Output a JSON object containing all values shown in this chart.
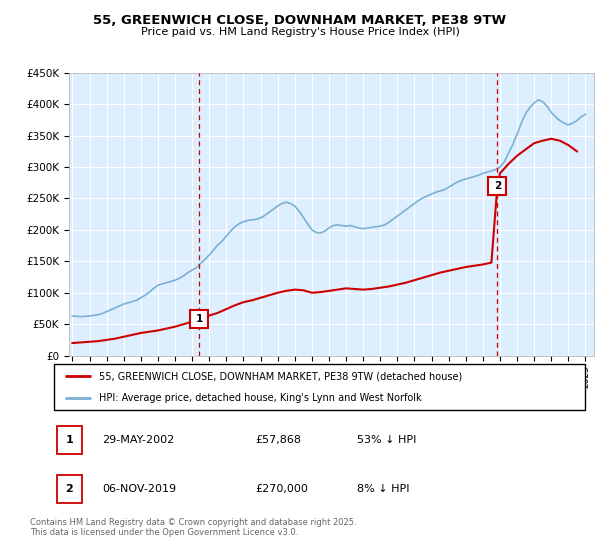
{
  "title": "55, GREENWICH CLOSE, DOWNHAM MARKET, PE38 9TW",
  "subtitle": "Price paid vs. HM Land Registry's House Price Index (HPI)",
  "ylabel_ticks": [
    "£0",
    "£50K",
    "£100K",
    "£150K",
    "£200K",
    "£250K",
    "£300K",
    "£350K",
    "£400K",
    "£450K"
  ],
  "ytick_values": [
    0,
    50000,
    100000,
    150000,
    200000,
    250000,
    300000,
    350000,
    400000,
    450000
  ],
  "ylim": [
    0,
    450000
  ],
  "xlim_start": 1994.8,
  "xlim_end": 2025.5,
  "red_line_color": "#cc0000",
  "blue_line_color": "#7ab0d4",
  "plot_bg_color": "#ddeeff",
  "grid_color": "#ffffff",
  "marker1_x": 2002.41,
  "marker1_y": 57868,
  "marker2_x": 2019.85,
  "marker2_y": 270000,
  "legend1": "55, GREENWICH CLOSE, DOWNHAM MARKET, PE38 9TW (detached house)",
  "legend2": "HPI: Average price, detached house, King's Lynn and West Norfolk",
  "ann1_label": "1",
  "ann1_date": "29-MAY-2002",
  "ann1_price": "£57,868",
  "ann1_hpi": "53% ↓ HPI",
  "ann2_label": "2",
  "ann2_date": "06-NOV-2019",
  "ann2_price": "£270,000",
  "ann2_hpi": "8% ↓ HPI",
  "footer": "Contains HM Land Registry data © Crown copyright and database right 2025.\nThis data is licensed under the Open Government Licence v3.0.",
  "hpi_data_x": [
    1995.0,
    1995.25,
    1995.5,
    1995.75,
    1996.0,
    1996.25,
    1996.5,
    1996.75,
    1997.0,
    1997.25,
    1997.5,
    1997.75,
    1998.0,
    1998.25,
    1998.5,
    1998.75,
    1999.0,
    1999.25,
    1999.5,
    1999.75,
    2000.0,
    2000.25,
    2000.5,
    2000.75,
    2001.0,
    2001.25,
    2001.5,
    2001.75,
    2002.0,
    2002.25,
    2002.5,
    2002.75,
    2003.0,
    2003.25,
    2003.5,
    2003.75,
    2004.0,
    2004.25,
    2004.5,
    2004.75,
    2005.0,
    2005.25,
    2005.5,
    2005.75,
    2006.0,
    2006.25,
    2006.5,
    2006.75,
    2007.0,
    2007.25,
    2007.5,
    2007.75,
    2008.0,
    2008.25,
    2008.5,
    2008.75,
    2009.0,
    2009.25,
    2009.5,
    2009.75,
    2010.0,
    2010.25,
    2010.5,
    2010.75,
    2011.0,
    2011.25,
    2011.5,
    2011.75,
    2012.0,
    2012.25,
    2012.5,
    2012.75,
    2013.0,
    2013.25,
    2013.5,
    2013.75,
    2014.0,
    2014.25,
    2014.5,
    2014.75,
    2015.0,
    2015.25,
    2015.5,
    2015.75,
    2016.0,
    2016.25,
    2016.5,
    2016.75,
    2017.0,
    2017.25,
    2017.5,
    2017.75,
    2018.0,
    2018.25,
    2018.5,
    2018.75,
    2019.0,
    2019.25,
    2019.5,
    2019.75,
    2020.0,
    2020.25,
    2020.5,
    2020.75,
    2021.0,
    2021.25,
    2021.5,
    2021.75,
    2022.0,
    2022.25,
    2022.5,
    2022.75,
    2023.0,
    2023.25,
    2023.5,
    2023.75,
    2024.0,
    2024.25,
    2024.5,
    2024.75,
    2025.0
  ],
  "hpi_data_y": [
    63000,
    62500,
    62000,
    62500,
    63000,
    64000,
    65000,
    67000,
    70000,
    73000,
    76000,
    79000,
    82000,
    84000,
    86000,
    88000,
    92000,
    96000,
    101000,
    107000,
    112000,
    114000,
    116000,
    118000,
    120000,
    123000,
    127000,
    132000,
    136000,
    140000,
    147000,
    153000,
    160000,
    168000,
    176000,
    182000,
    190000,
    198000,
    205000,
    210000,
    213000,
    215000,
    216000,
    217000,
    219000,
    223000,
    228000,
    233000,
    238000,
    242000,
    244000,
    242000,
    238000,
    230000,
    220000,
    210000,
    200000,
    196000,
    195000,
    198000,
    203000,
    207000,
    208000,
    207000,
    206000,
    207000,
    205000,
    203000,
    202000,
    203000,
    204000,
    205000,
    206000,
    208000,
    212000,
    217000,
    222000,
    227000,
    232000,
    237000,
    242000,
    247000,
    251000,
    254000,
    257000,
    260000,
    262000,
    264000,
    268000,
    272000,
    276000,
    279000,
    281000,
    283000,
    285000,
    287000,
    290000,
    292000,
    294000,
    296000,
    300000,
    308000,
    322000,
    336000,
    352000,
    370000,
    385000,
    395000,
    402000,
    407000,
    404000,
    397000,
    387000,
    380000,
    374000,
    370000,
    367000,
    370000,
    374000,
    380000,
    384000
  ],
  "price_data_x": [
    1995.0,
    1995.5,
    1996.0,
    1996.5,
    1997.0,
    1997.5,
    1998.0,
    1998.5,
    1999.0,
    1999.5,
    2000.0,
    2000.5,
    2001.0,
    2001.5,
    2002.0,
    2002.41,
    2002.8,
    2003.5,
    2004.0,
    2004.5,
    2005.0,
    2005.5,
    2006.0,
    2006.5,
    2007.0,
    2007.5,
    2008.0,
    2008.5,
    2009.0,
    2009.5,
    2010.0,
    2010.5,
    2011.0,
    2011.5,
    2012.0,
    2012.5,
    2013.0,
    2013.5,
    2014.0,
    2014.5,
    2015.0,
    2015.5,
    2016.0,
    2016.5,
    2017.0,
    2017.5,
    2018.0,
    2018.5,
    2019.0,
    2019.5,
    2019.85,
    2020.0,
    2020.5,
    2021.0,
    2021.5,
    2022.0,
    2022.5,
    2023.0,
    2023.5,
    2024.0,
    2024.5
  ],
  "price_data_y": [
    20000,
    21000,
    22000,
    23000,
    25000,
    27000,
    30000,
    33000,
    36000,
    38000,
    40000,
    43000,
    46000,
    50000,
    54000,
    57868,
    62000,
    68000,
    74000,
    80000,
    85000,
    88000,
    92000,
    96000,
    100000,
    103000,
    105000,
    104000,
    100000,
    101000,
    103000,
    105000,
    107000,
    106000,
    105000,
    106000,
    108000,
    110000,
    113000,
    116000,
    120000,
    124000,
    128000,
    132000,
    135000,
    138000,
    141000,
    143000,
    145000,
    148000,
    270000,
    290000,
    305000,
    318000,
    328000,
    338000,
    342000,
    345000,
    342000,
    335000,
    325000
  ]
}
